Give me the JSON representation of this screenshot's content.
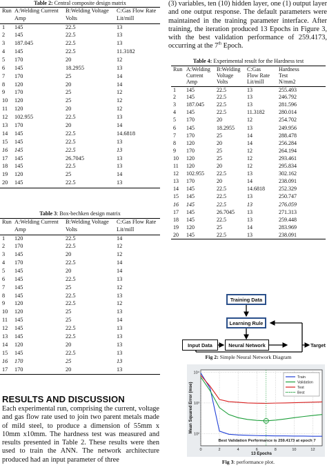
{
  "table2": {
    "caption_label": "Table 2:",
    "caption_text": " Central composite design matrix",
    "headers": [
      "Run",
      "A:Welding Current",
      "B:Welding Voltage",
      "C:Gas Flow Rate"
    ],
    "units": [
      "",
      "Amp",
      "Volts",
      "Lit/mill"
    ],
    "rows": [
      [
        "1",
        "145",
        "22.5",
        "13"
      ],
      [
        "2",
        "145",
        "22.5",
        "13"
      ],
      [
        "3",
        "187.045",
        "22.5",
        "13"
      ],
      [
        "4",
        "145",
        "22.5",
        "11.3182"
      ],
      [
        "5",
        "170",
        "20",
        "12"
      ],
      [
        "6",
        "145",
        "18.2955",
        "13"
      ],
      [
        "7",
        "170",
        "25",
        "14"
      ],
      [
        "8",
        "120",
        "20",
        "14"
      ],
      [
        "9",
        "170",
        "25",
        "12"
      ],
      [
        "10",
        "120",
        "25",
        "12"
      ],
      [
        "11",
        "120",
        "20",
        "12"
      ],
      [
        "12",
        "102.955",
        "22.5",
        "13"
      ],
      [
        "13",
        "170",
        "20",
        "14"
      ],
      [
        "14",
        "145",
        "22.5",
        "14.6818"
      ],
      [
        "15",
        "145",
        "22.5",
        "13"
      ],
      [
        "16",
        "145",
        "22.5",
        "13"
      ],
      [
        "17",
        "145",
        "26.7045",
        "13"
      ],
      [
        "18",
        "145",
        "22.5",
        "13"
      ],
      [
        "19",
        "120",
        "25",
        "14"
      ],
      [
        "20",
        "145",
        "22.5",
        "13"
      ]
    ]
  },
  "table3": {
    "caption_label": "Table 3",
    "caption_text": ": Box-bechken design matrix",
    "headers": [
      "Run",
      "A:Welding Current",
      "B:Welding Voltage",
      "C:Gas Flow Rate"
    ],
    "units": [
      "",
      "Amp",
      "Volts",
      "Lit/mill"
    ],
    "rows": [
      [
        "1",
        "120",
        "22.5",
        "14"
      ],
      [
        "2",
        "170",
        "22.5",
        "12"
      ],
      [
        "3",
        "145",
        "20",
        "12"
      ],
      [
        "4",
        "170",
        "22.5",
        "14"
      ],
      [
        "5",
        "145",
        "20",
        "14"
      ],
      [
        "6",
        "145",
        "22.5",
        "13"
      ],
      [
        "7",
        "145",
        "25",
        "12"
      ],
      [
        "8",
        "145",
        "22.5",
        "13"
      ],
      [
        "9",
        "120",
        "22.5",
        "12"
      ],
      [
        "10",
        "120",
        "25",
        "13"
      ],
      [
        "11",
        "145",
        "25",
        "14"
      ],
      [
        "12",
        "145",
        "22.5",
        "13"
      ],
      [
        "13",
        "145",
        "22.5",
        "13"
      ],
      [
        "14",
        "120",
        "20",
        "13"
      ],
      [
        "15",
        "145",
        "22.5",
        "13"
      ],
      [
        "16",
        "170",
        "25",
        "13"
      ],
      [
        "17",
        "170",
        "20",
        "13"
      ]
    ]
  },
  "section": {
    "heading": "RESULTS AND DISCUSSION",
    "paragraph": "Each experimental run, comprising the current, voltage and gas flow rate used to join two parent metals made of mild steel, to produce a dimension of 55mm x 10mm x10mm. The hardness test was measured and results presented in Table 2. These results were then used to train the ANN. The network architecture produced had an input parameter of three"
  },
  "right_text": {
    "para_before_sup": "(3) variables, ten (10) hidden layer, one (1) output layer and one output response. The default parameters were maintained in the training parameter interface. After training, the iteration produced 13 Epochs in Figure 3, with the best validation performance of 259.4173, occurring at the 7",
    "sup": "th",
    "para_after_sup": " Epoch."
  },
  "table4": {
    "caption_label": "Table 4:",
    "caption_text": " Experimental result for the Hardness test",
    "headers": [
      "Run",
      "A:Welding",
      "B:Welding",
      "C:Gas",
      "Hardness"
    ],
    "headers2": [
      "",
      "Current",
      "Voltage",
      "Flow Rate",
      "Test"
    ],
    "units": [
      "",
      "Amp",
      "Volts",
      "Lit/mill",
      "N/mm2"
    ],
    "rows": [
      [
        "1",
        "145",
        "22.5",
        "13",
        "255.493"
      ],
      [
        "2",
        "145",
        "22.5",
        "13",
        "246.792"
      ],
      [
        "3",
        "187.045",
        "22.5",
        "13",
        "281.596"
      ],
      [
        "4",
        "145",
        "22.5",
        "11.3182",
        "280.014"
      ],
      [
        "5",
        "170",
        "20",
        "12",
        "254.702"
      ],
      [
        "6",
        "145",
        "18.2955",
        "13",
        "249.956"
      ],
      [
        "7",
        "170",
        "25",
        "14",
        "288.478"
      ],
      [
        "8",
        "120",
        "20",
        "14",
        "256.284"
      ],
      [
        "9",
        "170",
        "25",
        "12",
        "264.194"
      ],
      [
        "10",
        "120",
        "25",
        "12",
        "293.461"
      ],
      [
        "11",
        "120",
        "20",
        "12",
        "295.834"
      ],
      [
        "12",
        "102.955",
        "22.5",
        "13",
        "302.162"
      ],
      [
        "13",
        "170",
        "20",
        "14",
        "238.091"
      ],
      [
        "14",
        "145",
        "22.5",
        "14.6818",
        "252.329"
      ],
      [
        "15",
        "145",
        "22.5",
        "13",
        "250.747"
      ],
      [
        "16",
        "145",
        "22.5",
        "13",
        "276.059"
      ],
      [
        "17",
        "145",
        "26.7045",
        "13",
        "271.313"
      ],
      [
        "18",
        "145",
        "22.5",
        "13",
        "259.448"
      ],
      [
        "19",
        "120",
        "25",
        "14",
        "283.969"
      ],
      [
        "20",
        "145",
        "22.5",
        "13",
        "238.091"
      ]
    ]
  },
  "fig2": {
    "training_data": "Training Data",
    "learning_rule": "Learning Rule",
    "input_data": "Input Data",
    "neural_network": "Neural Network",
    "target": "Target",
    "caption_label": "Fig 2:",
    "caption_text": " Simple Neural Network Diagram"
  },
  "fig3": {
    "ylabel": "Mean Squared Error  (mse)",
    "xlabel": "13 Epochs",
    "annotation": "Best Validation Performance is 259.4173 at epoch 7",
    "legend": [
      "Train",
      "Validation",
      "Test",
      "Best"
    ],
    "colors": {
      "train": "#1f3fd6",
      "validation": "#1d9e3a",
      "test": "#d81e1e",
      "best": "#1d9e3a"
    },
    "caption_label": "Fig 3",
    "caption_text": ": performance plot.",
    "chart_data": {
      "type": "line",
      "xlabel": "13 Epochs",
      "ylabel": "Mean Squared Error  (mse)",
      "xlim": [
        0,
        13
      ],
      "x_ticks": [
        "0",
        "2",
        "4",
        "6",
        "8",
        "10",
        "12"
      ],
      "y_scale": "log",
      "y_ticks": [
        "10²",
        "10³",
        "10⁴"
      ],
      "series": [
        {
          "name": "Train",
          "x": [
            0,
            1,
            2,
            3,
            4,
            5,
            6,
            7,
            8,
            9,
            10,
            11,
            12,
            13
          ],
          "y": [
            9500,
            3000,
            120,
            95,
            90,
            88,
            86,
            85,
            84,
            84,
            83,
            83,
            82,
            82
          ]
        },
        {
          "name": "Validation",
          "x": [
            0,
            1,
            2,
            3,
            4,
            5,
            6,
            7,
            8,
            9,
            10,
            11,
            12,
            13
          ],
          "y": [
            7000,
            2500,
            700,
            420,
            330,
            290,
            270,
            259.4,
            275,
            300,
            330,
            360,
            390,
            420
          ]
        },
        {
          "name": "Test",
          "x": [
            0,
            1,
            2,
            3,
            4,
            5,
            6,
            7,
            8,
            9,
            10,
            11,
            12,
            13
          ],
          "y": [
            8000,
            3500,
            1300,
            1100,
            1050,
            1000,
            980,
            970,
            990,
            1000,
            1020,
            1040,
            1060,
            1080
          ]
        }
      ],
      "best": {
        "x": 7,
        "y": 259.4173
      }
    }
  }
}
